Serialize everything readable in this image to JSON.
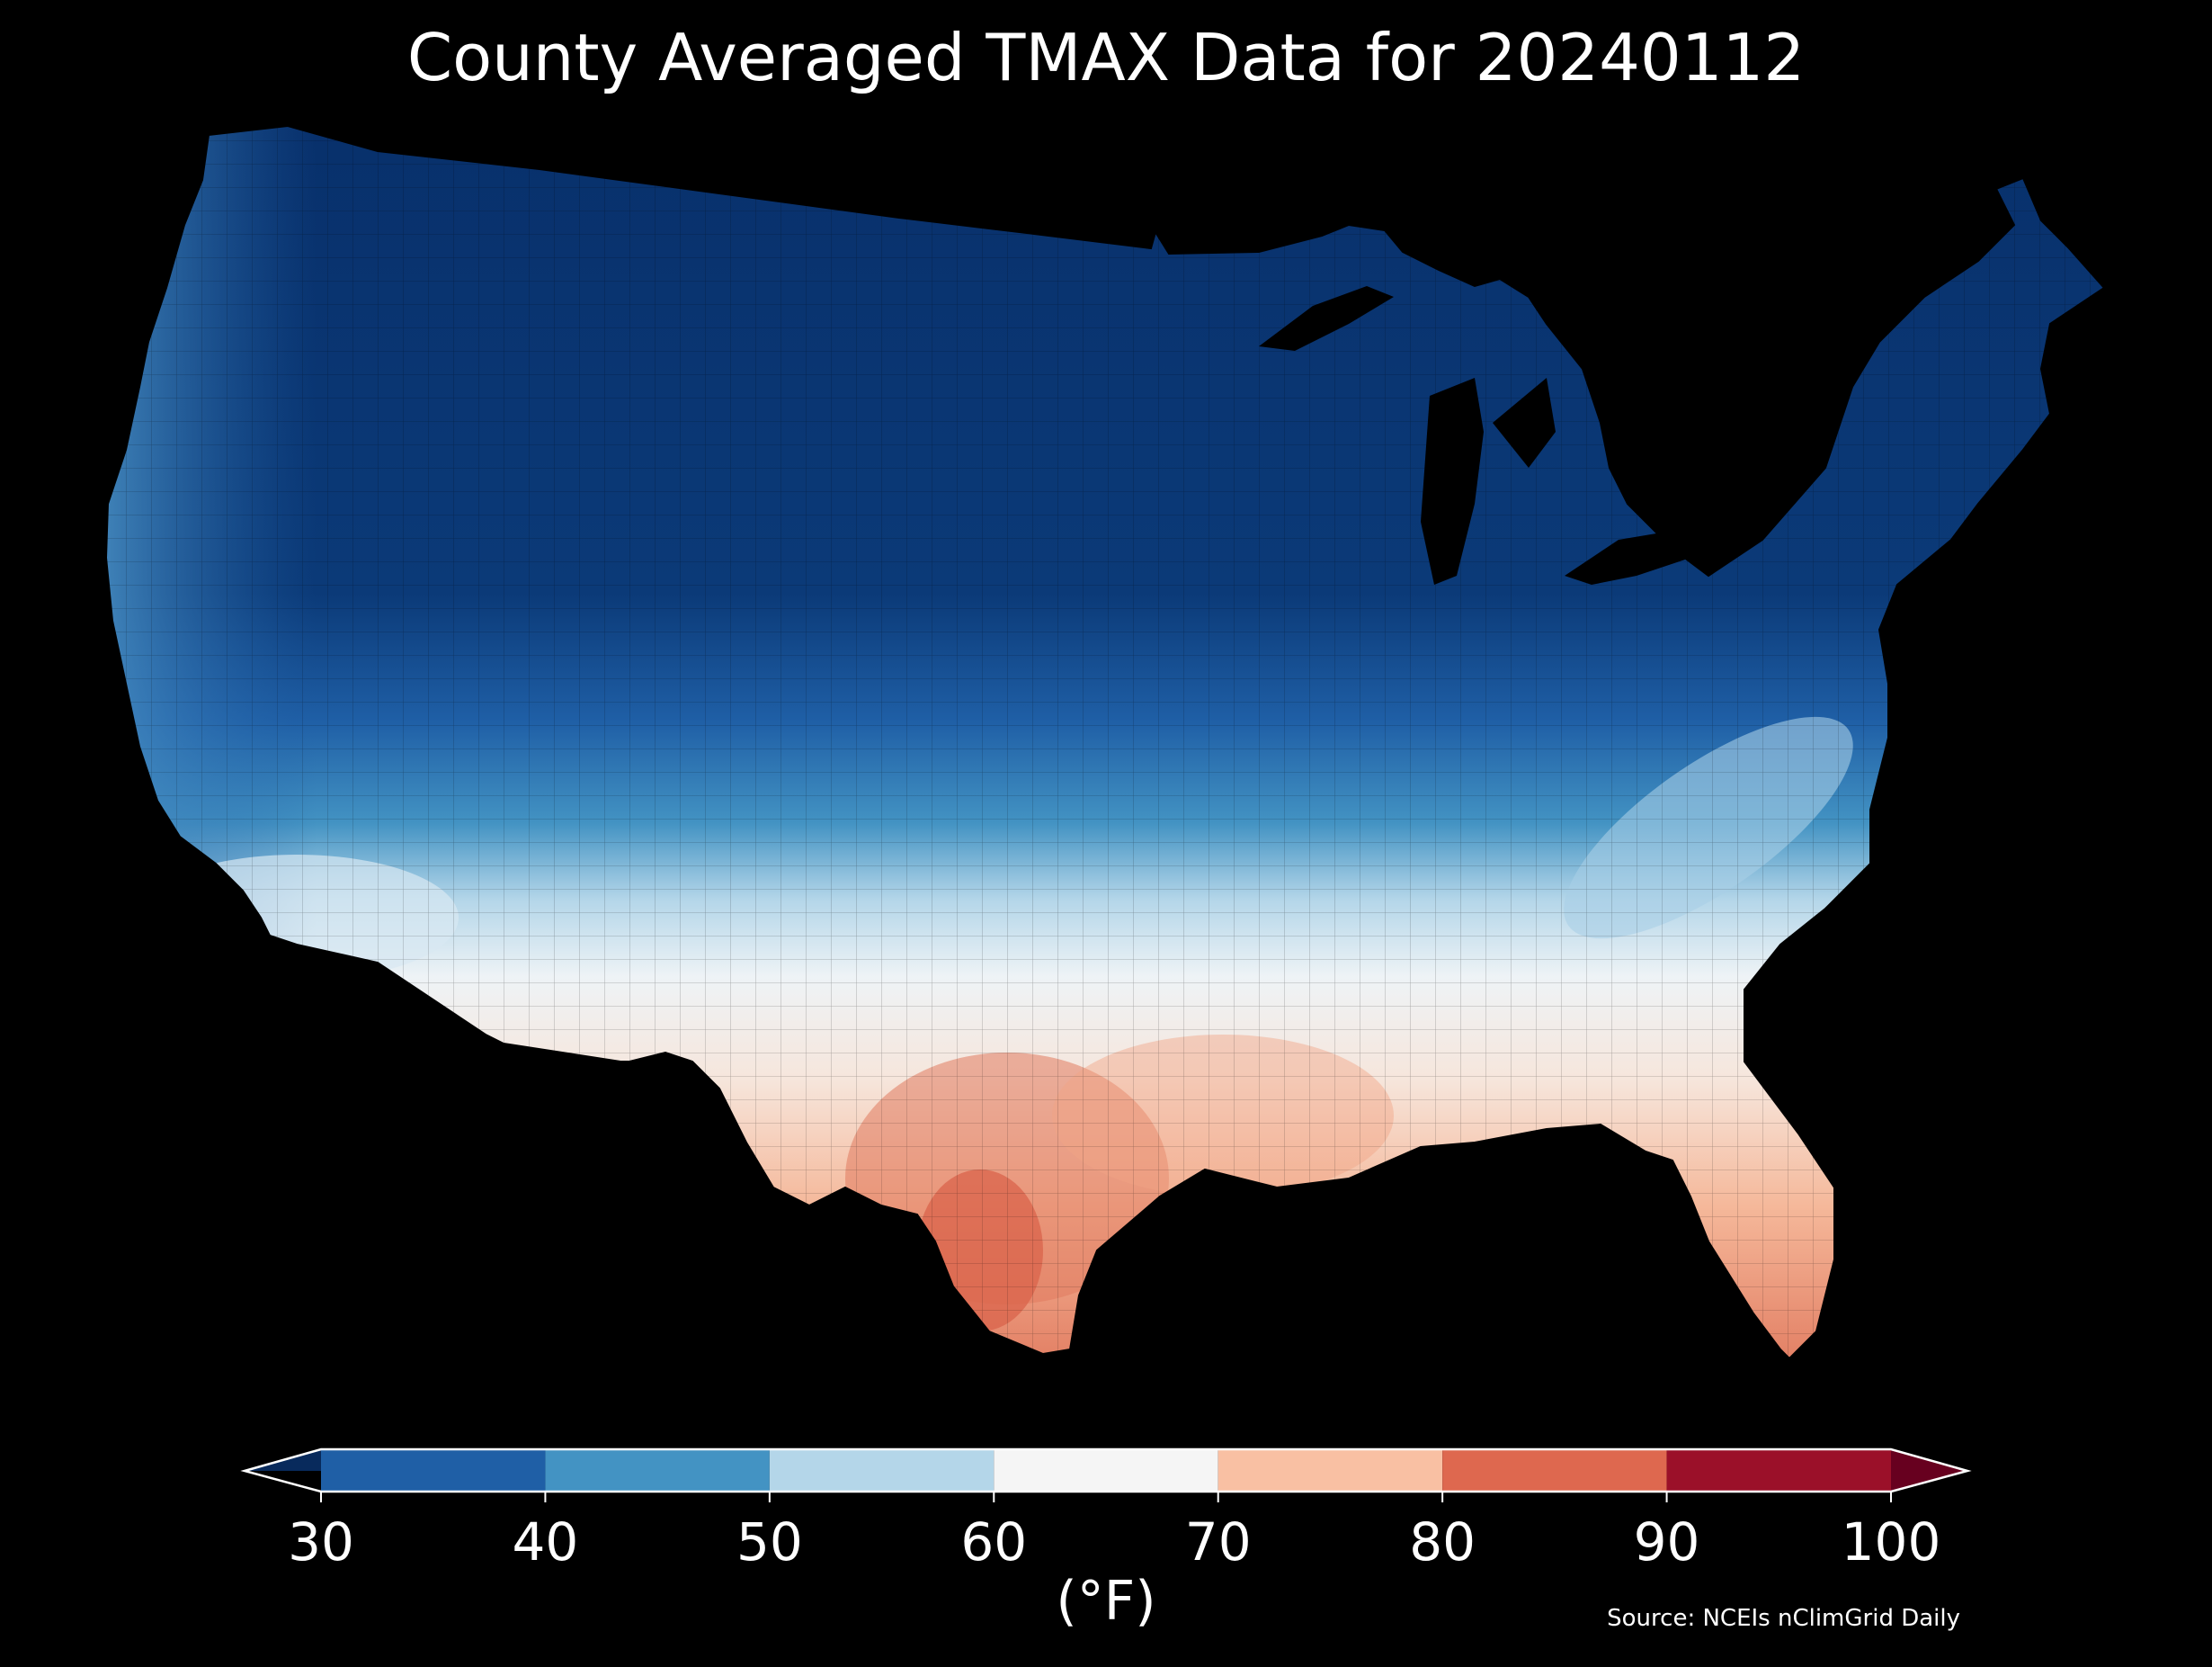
{
  "map": {
    "title": "County Averaged TMAX Data for 20240112",
    "background": "#000000",
    "region": "contiguous-united-states",
    "variable": "TMAX",
    "date": "20240112",
    "layer": "county-choropleth"
  },
  "colorbar": {
    "unit_label": "(°F)",
    "tick_labels": [
      "30",
      "40",
      "50",
      "60",
      "70",
      "80",
      "90",
      "100"
    ],
    "bins": [
      {
        "from": 30,
        "to": 40,
        "color": "#1f5fa6"
      },
      {
        "from": 40,
        "to": 50,
        "color": "#4393c3"
      },
      {
        "from": 50,
        "to": 60,
        "color": "#b4d6e9"
      },
      {
        "from": 60,
        "to": 70,
        "color": "#f5f5f5"
      },
      {
        "from": 70,
        "to": 80,
        "color": "#f9c0a3"
      },
      {
        "from": 80,
        "to": 90,
        "color": "#de684f"
      },
      {
        "from": 90,
        "to": 100,
        "color": "#9b1029"
      }
    ],
    "under_color": "#082a5c",
    "over_color": "#67001f"
  },
  "source_note": "Source: NCEIs nClimGrid Daily"
}
